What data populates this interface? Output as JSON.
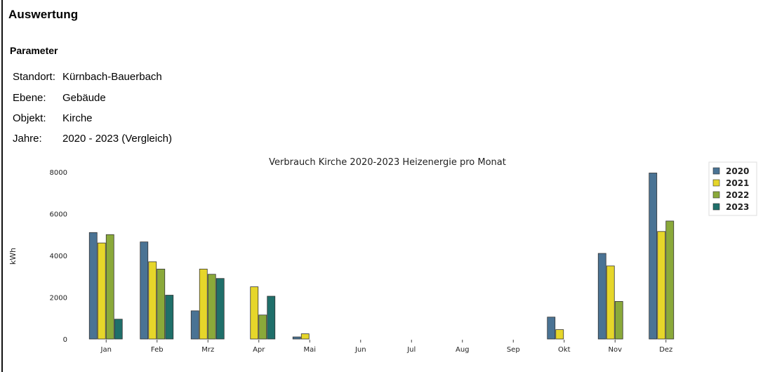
{
  "page": {
    "title": "Auswertung",
    "section_title": "Parameter",
    "params": [
      {
        "label": "Standort:",
        "value": "Kürnbach-Bauerbach"
      },
      {
        "label": "Ebene:",
        "value": "Gebäude"
      },
      {
        "label": "Objekt:",
        "value": "Kirche"
      },
      {
        "label": "Jahre:",
        "value": "2020 - 2023 (Vergleich)"
      }
    ]
  },
  "chart_data": {
    "type": "bar",
    "title": "Verbrauch Kirche 2020-2023 Heizenergie pro Monat",
    "xlabel": "",
    "ylabel": "kWh",
    "ylim": [
      0,
      8000
    ],
    "yticks": [
      0,
      2000,
      4000,
      6000,
      8000
    ],
    "categories": [
      "Jan",
      "Feb",
      "Mrz",
      "Apr",
      "Mai",
      "Jun",
      "Jul",
      "Aug",
      "Sep",
      "Okt",
      "Nov",
      "Dez"
    ],
    "series": [
      {
        "name": "2020",
        "color": "#4a7394",
        "values": [
          5100,
          4650,
          1350,
          0,
          100,
          0,
          0,
          0,
          0,
          1050,
          4100,
          7950
        ]
      },
      {
        "name": "2021",
        "color": "#e6d62a",
        "values": [
          4600,
          3700,
          3350,
          2500,
          250,
          0,
          0,
          0,
          0,
          450,
          3500,
          5150
        ]
      },
      {
        "name": "2022",
        "color": "#8aa93a",
        "values": [
          5000,
          3350,
          3100,
          1150,
          0,
          0,
          0,
          0,
          0,
          0,
          1800,
          5650
        ]
      },
      {
        "name": "2023",
        "color": "#1f6f6a",
        "values": [
          950,
          2100,
          2900,
          2050,
          0,
          0,
          0,
          0,
          0,
          0,
          0,
          0
        ]
      }
    ],
    "legend_position": "right",
    "grid": false
  }
}
